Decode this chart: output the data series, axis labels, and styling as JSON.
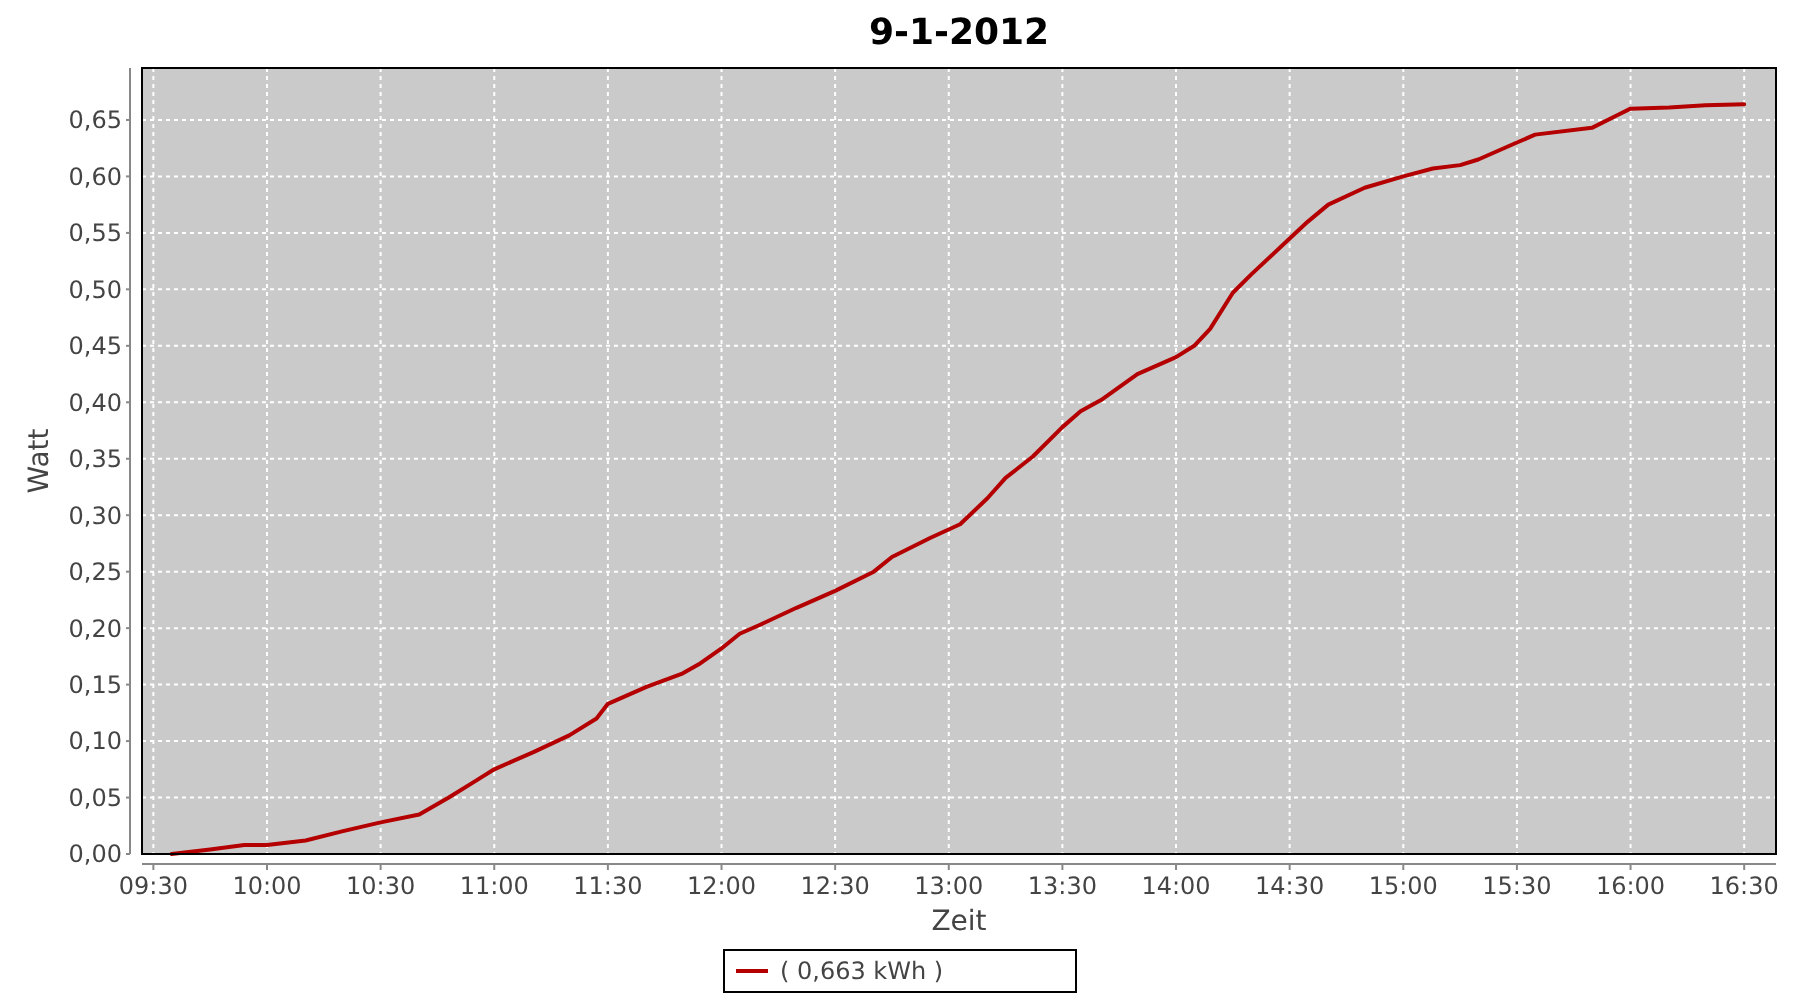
{
  "chart_data": {
    "type": "line",
    "title": "9-1-2012",
    "xlabel": "Zeit",
    "ylabel": "Watt",
    "xlim": [
      9.45,
      16.64
    ],
    "ylim": [
      0,
      0.696
    ],
    "xticks": [
      {
        "value": 9.5,
        "label": "09:30"
      },
      {
        "value": 10,
        "label": "10:00"
      },
      {
        "value": 10.5,
        "label": "10:30"
      },
      {
        "value": 11,
        "label": "11:00"
      },
      {
        "value": 11.5,
        "label": "11:30"
      },
      {
        "value": 12,
        "label": "12:00"
      },
      {
        "value": 12.5,
        "label": "12:30"
      },
      {
        "value": 13,
        "label": "13:00"
      },
      {
        "value": 13.5,
        "label": "13:30"
      },
      {
        "value": 14,
        "label": "14:00"
      },
      {
        "value": 14.5,
        "label": "14:30"
      },
      {
        "value": 15,
        "label": "15:00"
      },
      {
        "value": 15.5,
        "label": "15:30"
      },
      {
        "value": 16,
        "label": "16:00"
      },
      {
        "value": 16.5,
        "label": "16:30"
      }
    ],
    "yticks": [
      {
        "value": 0,
        "label": "0,00"
      },
      {
        "value": 0.05,
        "label": "0,05"
      },
      {
        "value": 0.1,
        "label": "0,10"
      },
      {
        "value": 0.15,
        "label": "0,15"
      },
      {
        "value": 0.2,
        "label": "0,20"
      },
      {
        "value": 0.25,
        "label": "0,25"
      },
      {
        "value": 0.3,
        "label": "0,30"
      },
      {
        "value": 0.35,
        "label": "0,35"
      },
      {
        "value": 0.4,
        "label": "0,40"
      },
      {
        "value": 0.45,
        "label": "0,45"
      },
      {
        "value": 0.5,
        "label": "0,50"
      },
      {
        "value": 0.55,
        "label": "0,55"
      },
      {
        "value": 0.6,
        "label": "0,60"
      },
      {
        "value": 0.65,
        "label": "0,65"
      }
    ],
    "grid": true,
    "legend": "bottom",
    "marker": "none",
    "line_style": "solid",
    "x": [
      9.58,
      9.75,
      9.9,
      10.0,
      10.17,
      10.33,
      10.5,
      10.67,
      10.8,
      10.92,
      11.0,
      11.17,
      11.33,
      11.45,
      11.5,
      11.58,
      11.67,
      11.83,
      11.9,
      12.0,
      12.08,
      12.17,
      12.33,
      12.5,
      12.67,
      12.75,
      12.92,
      13.05,
      13.17,
      13.25,
      13.37,
      13.5,
      13.58,
      13.67,
      13.83,
      14.0,
      14.08,
      14.15,
      14.25,
      14.33,
      14.5,
      14.58,
      14.67,
      14.83,
      15.0,
      15.13,
      15.25,
      15.33,
      15.5,
      15.58,
      15.83,
      15.95,
      16.0,
      16.17,
      16.33,
      16.5
    ],
    "series": [
      {
        "name": "( 0,663 kWh )",
        "color": "#b40000",
        "values": [
          0.0,
          0.004,
          0.008,
          0.008,
          0.012,
          0.02,
          0.028,
          0.035,
          0.05,
          0.065,
          0.075,
          0.09,
          0.105,
          0.12,
          0.133,
          0.14,
          0.148,
          0.16,
          0.168,
          0.182,
          0.195,
          0.203,
          0.218,
          0.233,
          0.25,
          0.263,
          0.28,
          0.292,
          0.315,
          0.333,
          0.352,
          0.378,
          0.392,
          0.402,
          0.425,
          0.44,
          0.45,
          0.465,
          0.497,
          0.513,
          0.545,
          0.56,
          0.575,
          0.59,
          0.6,
          0.607,
          0.61,
          0.615,
          0.63,
          0.637,
          0.643,
          0.655,
          0.66,
          0.661,
          0.663,
          0.664
        ]
      }
    ]
  }
}
